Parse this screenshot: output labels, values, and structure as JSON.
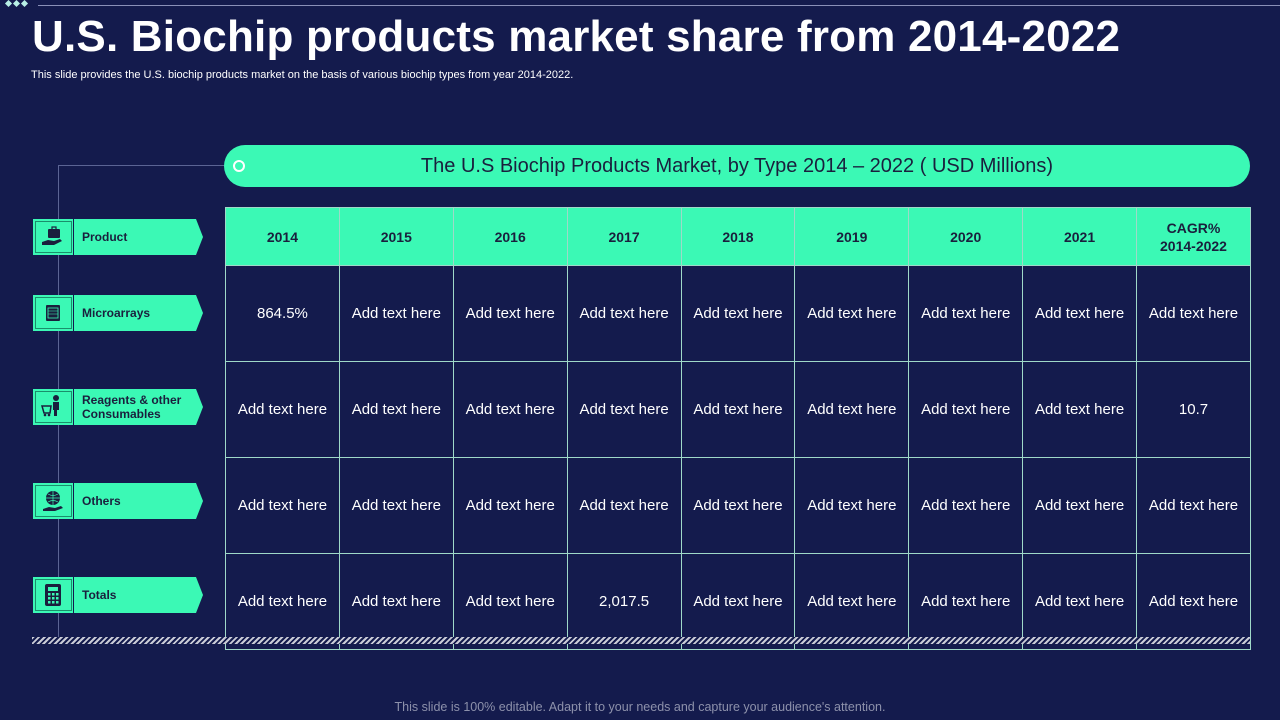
{
  "title": "U.S. Biochip products market share from 2014-2022",
  "subtitle": "This slide provides the U.S. biochip products market on the basis of various biochip types from year 2014-2022.",
  "banner": "The U.S Biochip Products Market, by Type 2014 – 2022 ( USD Millions)",
  "categories": [
    {
      "label": "Product",
      "icon": "briefcase-hand-icon"
    },
    {
      "label": "Microarrays",
      "icon": "chip-icon"
    },
    {
      "label": "Reagents & other Consumables",
      "icon": "shopping-cart-person-icon"
    },
    {
      "label": "Others",
      "icon": "globe-hand-icon"
    },
    {
      "label": "Totals",
      "icon": "calculator-icon"
    }
  ],
  "table": {
    "headers": [
      "2014",
      "2015",
      "2016",
      "2017",
      "2018",
      "2019",
      "2020",
      "2021",
      "CAGR% 2014-2022"
    ],
    "rows": [
      [
        "864.5%",
        "Add text here",
        "Add text here",
        "Add text here",
        "Add text here",
        "Add text here",
        "Add text here",
        "Add text here",
        "Add text here"
      ],
      [
        "Add text here",
        "Add text here",
        "Add text here",
        "Add text here",
        "Add text here",
        "Add text here",
        "Add text here",
        "Add text here",
        "10.7"
      ],
      [
        "Add text here",
        "Add text here",
        "Add text here",
        "Add text here",
        "Add text here",
        "Add text here",
        "Add text here",
        "Add text here",
        "Add text here"
      ],
      [
        "Add text here",
        "Add text here",
        "Add text here",
        "2,017.5",
        "Add text here",
        "Add text here",
        "Add text here",
        "Add text here",
        "Add text here"
      ]
    ]
  },
  "footer": "This slide is 100% editable. Adapt it to your needs and capture your audience's attention.",
  "colors": {
    "background": "#141b4d",
    "accent": "#3bf9b5",
    "dark_text": "#1a1f3d"
  }
}
